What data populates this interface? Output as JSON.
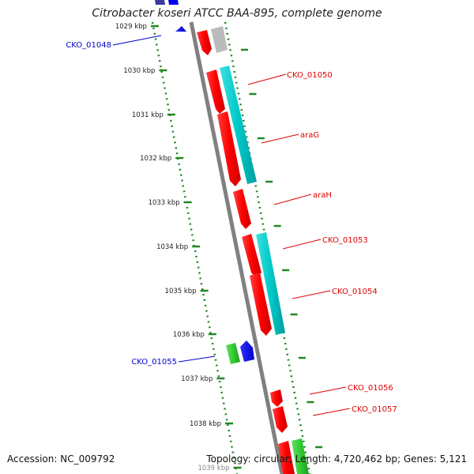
{
  "title": "Citrobacter koseri ATCC BAA-895, complete genome",
  "footer": {
    "accession": "Accession: NC_009792",
    "summary": "Topology: circular; Length: 4,720,462 bp; Genes: 5,121"
  },
  "ticks": [
    {
      "label": "1029 kbp"
    },
    {
      "label": "1030 kbp"
    },
    {
      "label": "1031 kbp"
    },
    {
      "label": "1032 kbp"
    },
    {
      "label": "1033 kbp"
    },
    {
      "label": "1034 kbp"
    },
    {
      "label": "1035 kbp"
    },
    {
      "label": "1036 kbp"
    },
    {
      "label": "1037 kbp"
    },
    {
      "label": "1038 kbp"
    },
    {
      "label": "1039 kbp"
    }
  ],
  "genes": [
    {
      "name": "CKO_01048",
      "color": "#0000cc"
    },
    {
      "name": "CKO_01050",
      "color": "#e00000"
    },
    {
      "name": "araG",
      "color": "#e00000"
    },
    {
      "name": "araH",
      "color": "#e00000"
    },
    {
      "name": "CKO_01053",
      "color": "#e00000"
    },
    {
      "name": "CKO_01054",
      "color": "#e00000"
    },
    {
      "name": "CKO_01055",
      "color": "#0000cc"
    },
    {
      "name": "CKO_01056",
      "color": "#e00000"
    },
    {
      "name": "CKO_01057",
      "color": "#e00000"
    }
  ],
  "colors": {
    "forward_gene": "#ff0000",
    "reverse_gene": "#0000ff",
    "cds_cyan": "#00c8c8",
    "green_gene": "#33cc33",
    "grey_gene": "#bbbbbb",
    "backbone": "#808080",
    "tick_green": "#228822"
  }
}
